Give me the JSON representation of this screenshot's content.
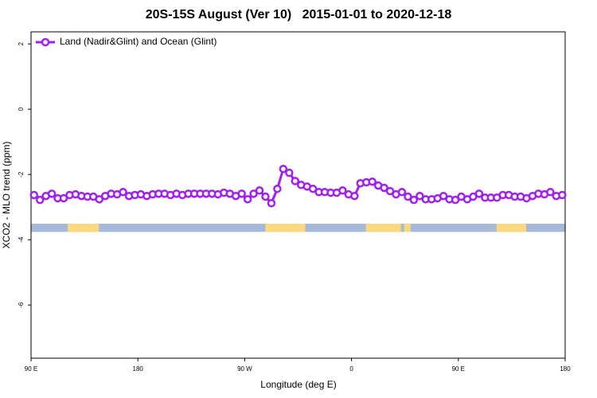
{
  "chart_data": {
    "type": "line",
    "title": "20S-15S August (Ver 10)   2015-01-01 to 2020-12-18",
    "x_label": "Longitude (deg E)",
    "y_label": "XCO2 - MLO trend (ppm)",
    "xlim": [
      90,
      540
    ],
    "xticks": [
      {
        "value": 90,
        "label": "90 E"
      },
      {
        "value": 180,
        "label": "180"
      },
      {
        "value": 270,
        "label": "90 W"
      },
      {
        "value": 360,
        "label": "0"
      },
      {
        "value": 450,
        "label": "90 E"
      },
      {
        "value": 540,
        "label": "180"
      }
    ],
    "ylim": [
      -7.63,
      2.37
    ],
    "yticks": [
      2,
      0,
      -2,
      -4,
      -6
    ],
    "legend": "top-left",
    "x": [
      92.5,
      97.5,
      102.5,
      107.5,
      112.5,
      117.5,
      122.5,
      127.5,
      132.5,
      137.5,
      142.5,
      147.5,
      152.5,
      157.5,
      162.5,
      167.5,
      172.5,
      177.5,
      182.5,
      187.5,
      192.5,
      197.5,
      202.5,
      207.5,
      212.5,
      217.5,
      222.5,
      227.5,
      232.5,
      237.5,
      242.5,
      247.5,
      252.5,
      257.5,
      262.5,
      267.5,
      272.5,
      277.5,
      282.5,
      287.5,
      292.5,
      297.5,
      302.5,
      307.5,
      312.5,
      317.5,
      322.5,
      327.5,
      332.5,
      337.5,
      342.5,
      347.5,
      352.5,
      357.5,
      362.5,
      367.5,
      372.5,
      377.5,
      382.5,
      387.5,
      392.5,
      397.5,
      402.5,
      407.5,
      412.5,
      417.5,
      422.5,
      427.5,
      432.5,
      437.5,
      442.5,
      447.5,
      452.5,
      457.5,
      462.5,
      467.5,
      472.5,
      477.5,
      482.5,
      487.5,
      492.5,
      497.5,
      502.5,
      507.5,
      512.5,
      517.5,
      522.5,
      527.5,
      532.5,
      537.5
    ],
    "series": [
      {
        "name": "Land (Nadir&Glint) and Ocean (Glint)",
        "color": "#a020f0",
        "values": [
          -2.63,
          -2.78,
          -2.66,
          -2.59,
          -2.73,
          -2.73,
          -2.63,
          -2.61,
          -2.66,
          -2.68,
          -2.68,
          -2.76,
          -2.66,
          -2.59,
          -2.61,
          -2.54,
          -2.66,
          -2.63,
          -2.61,
          -2.66,
          -2.61,
          -2.59,
          -2.59,
          -2.63,
          -2.59,
          -2.63,
          -2.59,
          -2.59,
          -2.59,
          -2.59,
          -2.59,
          -2.61,
          -2.56,
          -2.59,
          -2.66,
          -2.59,
          -2.76,
          -2.59,
          -2.49,
          -2.68,
          -2.88,
          -2.44,
          -1.83,
          -1.95,
          -2.2,
          -2.32,
          -2.37,
          -2.44,
          -2.54,
          -2.54,
          -2.56,
          -2.56,
          -2.49,
          -2.61,
          -2.66,
          -2.27,
          -2.24,
          -2.22,
          -2.34,
          -2.41,
          -2.51,
          -2.61,
          -2.54,
          -2.68,
          -2.78,
          -2.66,
          -2.76,
          -2.76,
          -2.73,
          -2.66,
          -2.76,
          -2.78,
          -2.68,
          -2.76,
          -2.68,
          -2.59,
          -2.71,
          -2.71,
          -2.71,
          -2.63,
          -2.63,
          -2.68,
          -2.68,
          -2.73,
          -2.66,
          -2.59,
          -2.61,
          -2.54,
          -2.66,
          -2.63
        ]
      }
    ],
    "surface_band": {
      "ylim": [
        -3.51,
        -3.76
      ],
      "ocean_color": "#a5b9d8",
      "land_color": "#fdd97e",
      "land": [
        [
          120.9,
          147.1
        ],
        [
          287.5,
          321.0
        ],
        [
          372.1,
          401.6
        ],
        [
          404.3,
          409.7
        ],
        [
          482.2,
          507.1
        ]
      ]
    }
  }
}
